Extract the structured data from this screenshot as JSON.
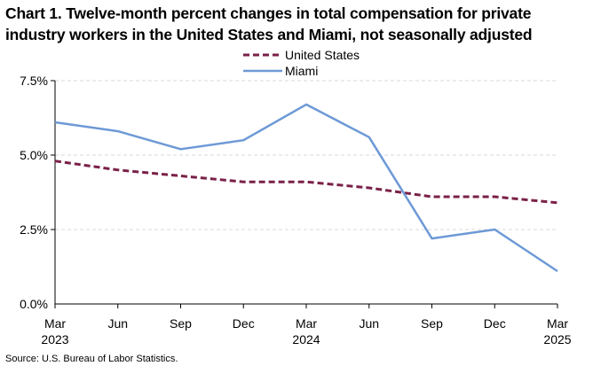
{
  "chart_data": {
    "type": "line",
    "title": "Chart 1. Twelve-month percent changes in total compensation for private industry workers in the United States and Miami, not seasonally adjusted",
    "source": "Source: U.S. Bureau of Labor Statistics.",
    "xlabel": "",
    "ylabel": "",
    "ylim": [
      0,
      7.5
    ],
    "yticks": [
      "0.0%",
      "2.5%",
      "5.0%",
      "7.5%"
    ],
    "yticks_values": [
      0,
      2.5,
      5.0,
      7.5
    ],
    "grid": true,
    "legend_position": "top-center",
    "categories": [
      {
        "month": "Mar",
        "year": "2023"
      },
      {
        "month": "Jun",
        "year": ""
      },
      {
        "month": "Sep",
        "year": ""
      },
      {
        "month": "Dec",
        "year": ""
      },
      {
        "month": "Mar",
        "year": "2024"
      },
      {
        "month": "Jun",
        "year": ""
      },
      {
        "month": "Sep",
        "year": ""
      },
      {
        "month": "Dec",
        "year": ""
      },
      {
        "month": "Mar",
        "year": "2025"
      }
    ],
    "series": [
      {
        "name": "United States",
        "color": "#7a2048",
        "style": "dashed",
        "values": [
          4.8,
          4.5,
          4.3,
          4.1,
          4.1,
          3.9,
          3.6,
          3.6,
          3.4
        ]
      },
      {
        "name": "Miami",
        "color": "#6d99d6",
        "style": "solid",
        "values": [
          6.1,
          5.8,
          5.2,
          5.5,
          6.7,
          5.6,
          2.2,
          2.5,
          1.1
        ]
      }
    ]
  }
}
